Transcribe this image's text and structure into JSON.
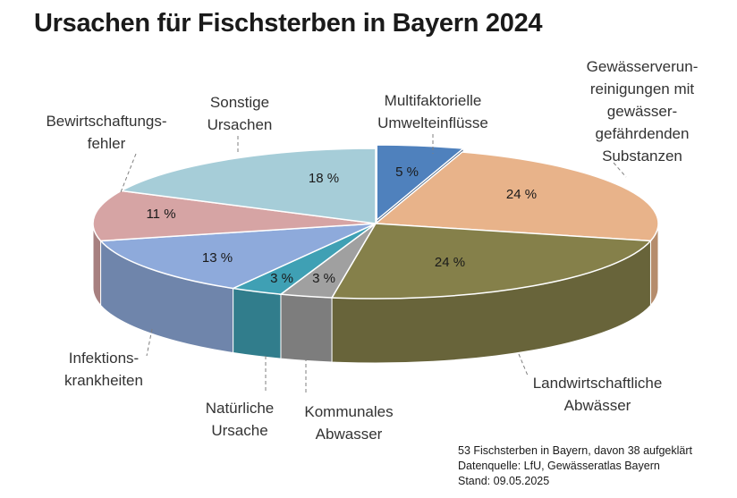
{
  "colors": {
    "multifaktoriell": "#4f81bd",
    "gewaesser": "#e8b38a",
    "landwirtschaft": "#85804a",
    "kommunal": "#a0a0a0",
    "natuerlich": "#3fa0b4",
    "infektion": "#8eaadb",
    "bewirtschaftung": "#d6a4a4",
    "sonstige": "#a6cdd8"
  },
  "chart_data": {
    "type": "pie",
    "title": "Ursachen für Fischsterben in Bayern 2024",
    "categories": [
      "Multifaktorielle Umwelteinflüsse",
      "Gewässerverunreinigungen mit gewässergefährdenden Substanzen",
      "Landwirtschaftliche Abwässer",
      "Kommunales Abwasser",
      "Natürliche Ursache",
      "Infektionskrankheiten",
      "Bewirtschaftungsfehler",
      "Sonstige Ursachen"
    ],
    "values": [
      5,
      24,
      24,
      3,
      3,
      13,
      11,
      18
    ],
    "value_labels": [
      "5 %",
      "24 %",
      "24 %",
      "3 %",
      "3 %",
      "13 %",
      "11 %",
      "18 %"
    ],
    "category_label_lines": [
      [
        "Multifaktorielle",
        "Umwelteinflüsse"
      ],
      [
        "Gewässerverun-",
        "reinigungen mit",
        "gewässer-",
        "gefährdenden",
        "Substanzen"
      ],
      [
        "Landwirtschaftliche",
        "Abwässer"
      ],
      [
        "Kommunales",
        "Abwasser"
      ],
      [
        "Natürliche",
        "Ursache"
      ],
      [
        "Infektions-",
        "krankheiten"
      ],
      [
        "Bewirtschaftungs-",
        "fehler"
      ],
      [
        "Sonstige",
        "Ursachen"
      ]
    ],
    "unit": "%",
    "legend": "none"
  },
  "footnotes": {
    "line1": "53 Fischsterben in Bayern, davon 38 aufgeklärt",
    "line2": "Datenquelle: LfU, Gewässeratlas Bayern",
    "line3": "Stand: 09.05.2025"
  }
}
